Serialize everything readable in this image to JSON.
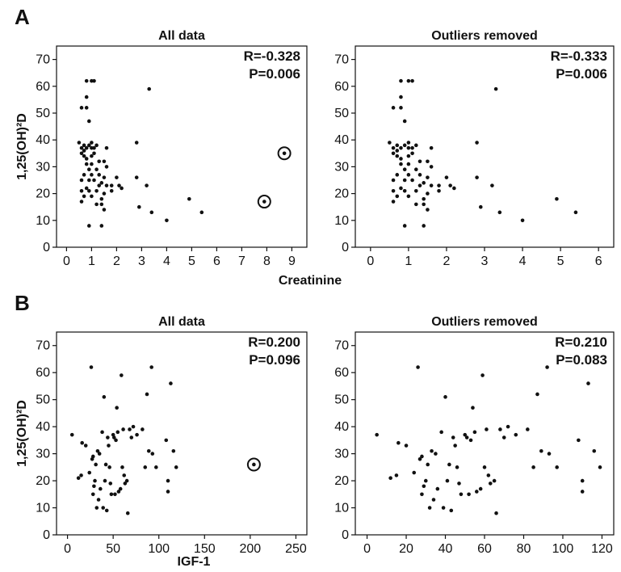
{
  "chart_data": [
    {
      "type": "scatter",
      "panel_label": "A",
      "title": "All data",
      "annotation": [
        "R=-0.328",
        "P=0.006"
      ],
      "xlabel": "",
      "ylabel": "1,25(OH)²D",
      "xlim": [
        -0.4,
        9.6
      ],
      "ylim": [
        0,
        75
      ],
      "xticks": [
        0,
        1,
        2,
        3,
        4,
        5,
        6,
        7,
        8,
        9
      ],
      "yticks": [
        0,
        10,
        20,
        30,
        40,
        50,
        60,
        70
      ],
      "grid": false,
      "points": [
        [
          0.8,
          62
        ],
        [
          1.0,
          62
        ],
        [
          1.1,
          62
        ],
        [
          0.8,
          56
        ],
        [
          0.6,
          52
        ],
        [
          0.8,
          52
        ],
        [
          0.9,
          47
        ],
        [
          0.5,
          39
        ],
        [
          0.7,
          38
        ],
        [
          1.0,
          39
        ],
        [
          0.6,
          37
        ],
        [
          0.7,
          36
        ],
        [
          0.8,
          37
        ],
        [
          0.9,
          38
        ],
        [
          1.0,
          37
        ],
        [
          1.1,
          37
        ],
        [
          1.2,
          38
        ],
        [
          0.6,
          35
        ],
        [
          0.7,
          34
        ],
        [
          0.8,
          33
        ],
        [
          1.0,
          34
        ],
        [
          1.1,
          35
        ],
        [
          1.6,
          37
        ],
        [
          0.8,
          31
        ],
        [
          1.0,
          31
        ],
        [
          1.3,
          32
        ],
        [
          1.5,
          32
        ],
        [
          0.9,
          29
        ],
        [
          1.2,
          29
        ],
        [
          1.6,
          30
        ],
        [
          0.7,
          27
        ],
        [
          1.0,
          27
        ],
        [
          1.3,
          27
        ],
        [
          1.5,
          26
        ],
        [
          2.0,
          26
        ],
        [
          0.6,
          25
        ],
        [
          0.9,
          25
        ],
        [
          1.1,
          25
        ],
        [
          1.4,
          24
        ],
        [
          1.8,
          23
        ],
        [
          0.8,
          22
        ],
        [
          1.3,
          23
        ],
        [
          1.6,
          23
        ],
        [
          2.1,
          23
        ],
        [
          2.2,
          22
        ],
        [
          0.6,
          21
        ],
        [
          0.9,
          21
        ],
        [
          1.2,
          21
        ],
        [
          1.5,
          20
        ],
        [
          1.8,
          21
        ],
        [
          0.7,
          19
        ],
        [
          1.0,
          19
        ],
        [
          1.4,
          18
        ],
        [
          0.6,
          17
        ],
        [
          1.2,
          16
        ],
        [
          1.4,
          16
        ],
        [
          1.5,
          14
        ],
        [
          0.9,
          8
        ],
        [
          1.4,
          8
        ],
        [
          3.3,
          59
        ],
        [
          2.8,
          39
        ],
        [
          2.8,
          26
        ],
        [
          3.2,
          23
        ],
        [
          2.9,
          15
        ],
        [
          3.4,
          13
        ],
        [
          4.0,
          10
        ],
        [
          4.9,
          18
        ],
        [
          5.4,
          13
        ]
      ],
      "circled_outliers": [
        [
          7.9,
          17
        ],
        [
          8.7,
          35
        ]
      ]
    },
    {
      "type": "scatter",
      "panel_label": "",
      "title": "Outliers removed",
      "annotation": [
        "R=-0.333",
        "P=0.006"
      ],
      "xlabel": "",
      "ylabel": "",
      "xlim": [
        -0.4,
        6.4
      ],
      "ylim": [
        0,
        75
      ],
      "xticks": [
        0,
        1,
        2,
        3,
        4,
        5,
        6
      ],
      "yticks": [
        0,
        10,
        20,
        30,
        40,
        50,
        60,
        70
      ],
      "grid": false,
      "points": [
        [
          0.8,
          62
        ],
        [
          1.0,
          62
        ],
        [
          1.1,
          62
        ],
        [
          0.8,
          56
        ],
        [
          0.6,
          52
        ],
        [
          0.8,
          52
        ],
        [
          0.9,
          47
        ],
        [
          0.5,
          39
        ],
        [
          0.7,
          38
        ],
        [
          1.0,
          39
        ],
        [
          0.6,
          37
        ],
        [
          0.7,
          36
        ],
        [
          0.8,
          37
        ],
        [
          0.9,
          38
        ],
        [
          1.0,
          37
        ],
        [
          1.1,
          37
        ],
        [
          1.2,
          38
        ],
        [
          0.6,
          35
        ],
        [
          0.7,
          34
        ],
        [
          0.8,
          33
        ],
        [
          1.0,
          34
        ],
        [
          1.1,
          35
        ],
        [
          1.6,
          37
        ],
        [
          0.8,
          31
        ],
        [
          1.0,
          31
        ],
        [
          1.3,
          32
        ],
        [
          1.5,
          32
        ],
        [
          0.9,
          29
        ],
        [
          1.2,
          29
        ],
        [
          1.6,
          30
        ],
        [
          0.7,
          27
        ],
        [
          1.0,
          27
        ],
        [
          1.3,
          27
        ],
        [
          1.5,
          26
        ],
        [
          2.0,
          26
        ],
        [
          0.6,
          25
        ],
        [
          0.9,
          25
        ],
        [
          1.1,
          25
        ],
        [
          1.4,
          24
        ],
        [
          1.8,
          23
        ],
        [
          0.8,
          22
        ],
        [
          1.3,
          23
        ],
        [
          1.6,
          23
        ],
        [
          2.1,
          23
        ],
        [
          2.2,
          22
        ],
        [
          0.6,
          21
        ],
        [
          0.9,
          21
        ],
        [
          1.2,
          21
        ],
        [
          1.5,
          20
        ],
        [
          1.8,
          21
        ],
        [
          0.7,
          19
        ],
        [
          1.0,
          19
        ],
        [
          1.4,
          18
        ],
        [
          0.6,
          17
        ],
        [
          1.2,
          16
        ],
        [
          1.4,
          16
        ],
        [
          1.5,
          14
        ],
        [
          0.9,
          8
        ],
        [
          1.4,
          8
        ],
        [
          3.3,
          59
        ],
        [
          2.8,
          39
        ],
        [
          2.8,
          26
        ],
        [
          3.2,
          23
        ],
        [
          2.9,
          15
        ],
        [
          3.4,
          13
        ],
        [
          4.0,
          10
        ],
        [
          4.9,
          18
        ],
        [
          5.4,
          13
        ]
      ],
      "circled_outliers": []
    },
    {
      "type": "scatter",
      "panel_label": "B",
      "title": "All data",
      "annotation": [
        "R=0.200",
        "P=0.096"
      ],
      "xlabel": "",
      "ylabel": "1,25(OH)²D",
      "xlim": [
        -12,
        262
      ],
      "ylim": [
        0,
        75
      ],
      "xticks": [
        0,
        50,
        100,
        150,
        200,
        250
      ],
      "yticks": [
        0,
        10,
        20,
        30,
        40,
        50,
        60,
        70
      ],
      "grid": false,
      "points": [
        [
          5,
          37
        ],
        [
          12,
          21
        ],
        [
          15,
          22
        ],
        [
          16,
          34
        ],
        [
          20,
          33
        ],
        [
          24,
          23
        ],
        [
          26,
          62
        ],
        [
          27,
          28
        ],
        [
          28,
          29
        ],
        [
          28,
          15
        ],
        [
          29,
          18
        ],
        [
          30,
          20
        ],
        [
          31,
          26
        ],
        [
          32,
          10
        ],
        [
          33,
          31
        ],
        [
          34,
          13
        ],
        [
          35,
          30
        ],
        [
          36,
          17
        ],
        [
          38,
          38
        ],
        [
          39,
          10
        ],
        [
          40,
          51
        ],
        [
          41,
          20
        ],
        [
          42,
          26
        ],
        [
          43,
          9
        ],
        [
          44,
          36
        ],
        [
          45,
          33
        ],
        [
          46,
          25
        ],
        [
          47,
          19
        ],
        [
          48,
          15
        ],
        [
          50,
          37
        ],
        [
          51,
          36
        ],
        [
          52,
          15
        ],
        [
          53,
          35
        ],
        [
          54,
          47
        ],
        [
          55,
          38
        ],
        [
          56,
          16
        ],
        [
          58,
          17
        ],
        [
          59,
          59
        ],
        [
          60,
          25
        ],
        [
          61,
          39
        ],
        [
          62,
          22
        ],
        [
          63,
          19
        ],
        [
          65,
          20
        ],
        [
          66,
          8
        ],
        [
          68,
          39
        ],
        [
          70,
          36
        ],
        [
          72,
          40
        ],
        [
          76,
          37
        ],
        [
          82,
          39
        ],
        [
          85,
          25
        ],
        [
          87,
          52
        ],
        [
          89,
          31
        ],
        [
          92,
          62
        ],
        [
          93,
          30
        ],
        [
          97,
          25
        ],
        [
          108,
          35
        ],
        [
          110,
          16
        ],
        [
          110,
          20
        ],
        [
          113,
          56
        ],
        [
          116,
          31
        ],
        [
          119,
          25
        ]
      ],
      "circled_outliers": [
        [
          204,
          26
        ]
      ]
    },
    {
      "type": "scatter",
      "panel_label": "",
      "title": "Outliers removed",
      "annotation": [
        "R=0.210",
        "P=0.083"
      ],
      "xlabel": "",
      "ylabel": "",
      "xlim": [
        -6,
        126
      ],
      "ylim": [
        0,
        75
      ],
      "xticks": [
        0,
        20,
        40,
        60,
        80,
        100,
        120
      ],
      "yticks": [
        0,
        10,
        20,
        30,
        40,
        50,
        60,
        70
      ],
      "grid": false,
      "points": [
        [
          5,
          37
        ],
        [
          12,
          21
        ],
        [
          15,
          22
        ],
        [
          16,
          34
        ],
        [
          20,
          33
        ],
        [
          24,
          23
        ],
        [
          26,
          62
        ],
        [
          27,
          28
        ],
        [
          28,
          29
        ],
        [
          28,
          15
        ],
        [
          29,
          18
        ],
        [
          30,
          20
        ],
        [
          31,
          26
        ],
        [
          32,
          10
        ],
        [
          33,
          31
        ],
        [
          34,
          13
        ],
        [
          35,
          30
        ],
        [
          36,
          17
        ],
        [
          38,
          38
        ],
        [
          39,
          10
        ],
        [
          40,
          51
        ],
        [
          41,
          20
        ],
        [
          42,
          26
        ],
        [
          43,
          9
        ],
        [
          44,
          36
        ],
        [
          45,
          33
        ],
        [
          46,
          25
        ],
        [
          47,
          19
        ],
        [
          48,
          15
        ],
        [
          50,
          37
        ],
        [
          51,
          36
        ],
        [
          52,
          15
        ],
        [
          53,
          35
        ],
        [
          54,
          47
        ],
        [
          55,
          38
        ],
        [
          56,
          16
        ],
        [
          58,
          17
        ],
        [
          59,
          59
        ],
        [
          60,
          25
        ],
        [
          61,
          39
        ],
        [
          62,
          22
        ],
        [
          63,
          19
        ],
        [
          65,
          20
        ],
        [
          66,
          8
        ],
        [
          68,
          39
        ],
        [
          70,
          36
        ],
        [
          72,
          40
        ],
        [
          76,
          37
        ],
        [
          82,
          39
        ],
        [
          85,
          25
        ],
        [
          87,
          52
        ],
        [
          89,
          31
        ],
        [
          92,
          62
        ],
        [
          93,
          30
        ],
        [
          97,
          25
        ],
        [
          108,
          35
        ],
        [
          110,
          16
        ],
        [
          110,
          20
        ],
        [
          113,
          56
        ],
        [
          116,
          31
        ],
        [
          119,
          25
        ]
      ],
      "circled_outliers": []
    }
  ],
  "shared_xlabels": [
    "Creatinine",
    "IGF-1"
  ]
}
